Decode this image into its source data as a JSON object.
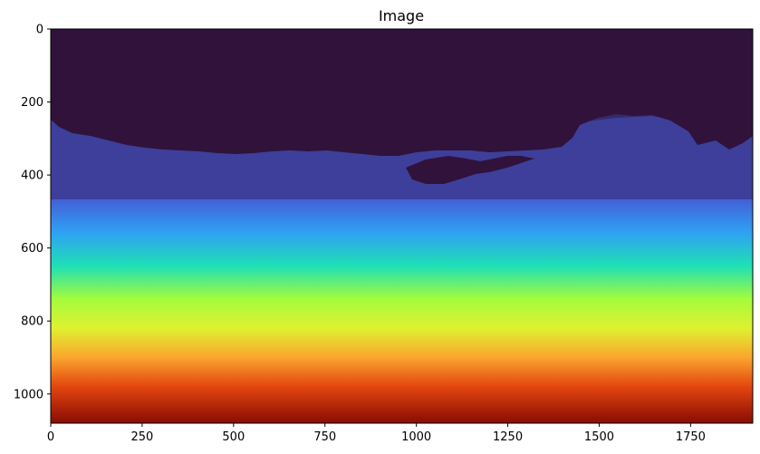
{
  "chart_data": {
    "type": "heatmap",
    "title": "Image",
    "xlabel": "",
    "ylabel": "",
    "xlim": [
      0,
      1920
    ],
    "ylim": [
      1080,
      0
    ],
    "y_axis_inverted": true,
    "grid": false,
    "colormap": "turbo",
    "x_ticks": [
      0,
      250,
      500,
      750,
      1000,
      1250,
      1500,
      1750
    ],
    "y_ticks": [
      0,
      200,
      400,
      600,
      800,
      1000
    ],
    "x_tick_labels": [
      "0",
      "250",
      "500",
      "750",
      "1000",
      "1250",
      "1500",
      "1750"
    ],
    "y_tick_labels": [
      "0",
      "200",
      "400",
      "600",
      "800",
      "1000"
    ],
    "gradient_stops": [
      {
        "row": 0,
        "color": "#30123b"
      },
      {
        "row": 420,
        "color": "#3b3b8c"
      },
      {
        "row": 470,
        "color": "#4262d8"
      },
      {
        "row": 560,
        "color": "#2ea3f4"
      },
      {
        "row": 650,
        "color": "#1fe0b4"
      },
      {
        "row": 740,
        "color": "#a4fc3c"
      },
      {
        "row": 820,
        "color": "#dff130"
      },
      {
        "row": 900,
        "color": "#fba52e"
      },
      {
        "row": 980,
        "color": "#e2460f"
      },
      {
        "row": 1080,
        "color": "#8a0b04"
      }
    ],
    "dark_region_color": "#30123b",
    "band_color": "#3d3f9a"
  }
}
